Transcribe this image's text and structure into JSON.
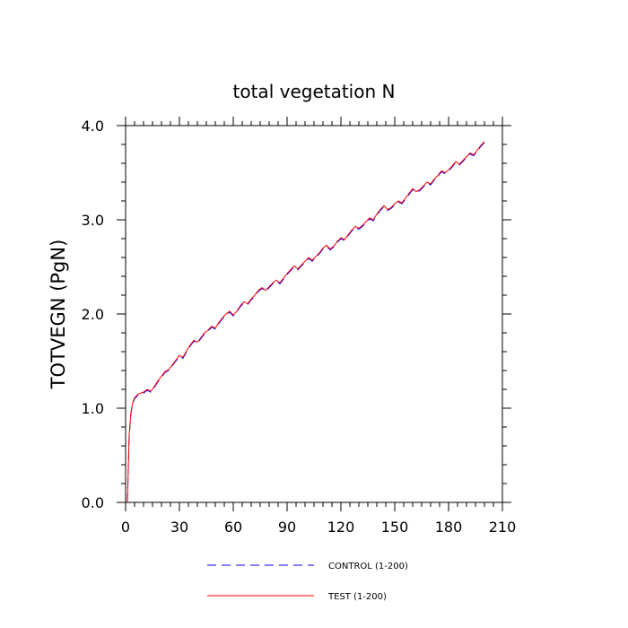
{
  "chart_data": {
    "type": "line",
    "title": "total vegetation N",
    "xlabel": "",
    "ylabel": "TOTVEGN  (PgN)",
    "xlim": [
      0,
      210
    ],
    "ylim": [
      0,
      4
    ],
    "x_ticks": [
      0,
      30,
      60,
      90,
      120,
      150,
      180,
      210
    ],
    "x_tick_labels": [
      "0",
      "30",
      "60",
      "90",
      "120",
      "150",
      "180",
      "210"
    ],
    "y_ticks": [
      0,
      1,
      2,
      3,
      4
    ],
    "y_tick_labels": [
      "0.0",
      "1.0",
      "2.0",
      "3.0",
      "4.0"
    ],
    "grid": false,
    "legend_position": "bottom",
    "series": [
      {
        "name": "CONTROL (1-200)",
        "color": "#0000ff",
        "dash": "dashed",
        "x": [
          1,
          2,
          3,
          4,
          5,
          7,
          10,
          12,
          14,
          16,
          18,
          20,
          22,
          24,
          26,
          28,
          30,
          32,
          34,
          36,
          38,
          40,
          42,
          44,
          46,
          48,
          50,
          52,
          54,
          56,
          58,
          60,
          62,
          64,
          66,
          68,
          70,
          72,
          74,
          76,
          78,
          80,
          82,
          84,
          86,
          88,
          90,
          92,
          94,
          96,
          98,
          100,
          102,
          104,
          106,
          108,
          110,
          112,
          114,
          116,
          118,
          120,
          122,
          124,
          126,
          128,
          130,
          132,
          134,
          136,
          138,
          140,
          142,
          144,
          146,
          148,
          150,
          152,
          154,
          156,
          158,
          160,
          162,
          164,
          166,
          168,
          170,
          172,
          174,
          176,
          178,
          180,
          182,
          184,
          186,
          188,
          190,
          192,
          194,
          196,
          198,
          200
        ],
        "values": [
          0.0,
          0.7,
          0.95,
          1.05,
          1.1,
          1.14,
          1.16,
          1.19,
          1.17,
          1.22,
          1.28,
          1.33,
          1.38,
          1.4,
          1.45,
          1.5,
          1.55,
          1.53,
          1.6,
          1.66,
          1.71,
          1.69,
          1.74,
          1.79,
          1.82,
          1.86,
          1.84,
          1.9,
          1.95,
          1.99,
          2.02,
          1.98,
          2.02,
          2.08,
          2.12,
          2.1,
          2.15,
          2.19,
          2.24,
          2.27,
          2.24,
          2.28,
          2.32,
          2.35,
          2.32,
          2.37,
          2.42,
          2.46,
          2.5,
          2.47,
          2.51,
          2.55,
          2.59,
          2.56,
          2.6,
          2.64,
          2.69,
          2.72,
          2.68,
          2.71,
          2.76,
          2.8,
          2.78,
          2.83,
          2.88,
          2.92,
          2.9,
          2.93,
          2.97,
          3.01,
          2.99,
          3.05,
          3.1,
          3.14,
          3.1,
          3.12,
          3.16,
          3.19,
          3.17,
          3.22,
          3.27,
          3.32,
          3.29,
          3.31,
          3.35,
          3.39,
          3.37,
          3.42,
          3.46,
          3.51,
          3.49,
          3.52,
          3.56,
          3.61,
          3.58,
          3.62,
          3.66,
          3.7,
          3.68,
          3.73,
          3.78,
          3.82
        ]
      },
      {
        "name": "TEST (1-200)",
        "color": "#ff0000",
        "dash": "solid",
        "x": [
          1,
          2,
          3,
          4,
          5,
          7,
          10,
          12,
          14,
          16,
          18,
          20,
          22,
          24,
          26,
          28,
          30,
          32,
          34,
          36,
          38,
          40,
          42,
          44,
          46,
          48,
          50,
          52,
          54,
          56,
          58,
          60,
          62,
          64,
          66,
          68,
          70,
          72,
          74,
          76,
          78,
          80,
          82,
          84,
          86,
          88,
          90,
          92,
          94,
          96,
          98,
          100,
          102,
          104,
          106,
          108,
          110,
          112,
          114,
          116,
          118,
          120,
          122,
          124,
          126,
          128,
          130,
          132,
          134,
          136,
          138,
          140,
          142,
          144,
          146,
          148,
          150,
          152,
          154,
          156,
          158,
          160,
          162,
          164,
          166,
          168,
          170,
          172,
          174,
          176,
          178,
          180,
          182,
          184,
          186,
          188,
          190,
          192,
          194,
          196,
          198,
          200
        ],
        "values": [
          0.0,
          0.72,
          0.96,
          1.06,
          1.11,
          1.15,
          1.17,
          1.2,
          1.18,
          1.23,
          1.29,
          1.34,
          1.39,
          1.41,
          1.46,
          1.51,
          1.56,
          1.54,
          1.61,
          1.67,
          1.72,
          1.7,
          1.75,
          1.8,
          1.83,
          1.87,
          1.85,
          1.91,
          1.96,
          2.0,
          2.03,
          1.99,
          2.03,
          2.09,
          2.13,
          2.11,
          2.16,
          2.2,
          2.25,
          2.28,
          2.25,
          2.29,
          2.33,
          2.36,
          2.33,
          2.38,
          2.43,
          2.47,
          2.51,
          2.48,
          2.52,
          2.56,
          2.6,
          2.57,
          2.61,
          2.65,
          2.7,
          2.73,
          2.69,
          2.72,
          2.77,
          2.81,
          2.79,
          2.84,
          2.89,
          2.93,
          2.91,
          2.94,
          2.98,
          3.02,
          3.0,
          3.06,
          3.11,
          3.15,
          3.11,
          3.13,
          3.17,
          3.2,
          3.18,
          3.23,
          3.28,
          3.33,
          3.3,
          3.32,
          3.36,
          3.4,
          3.38,
          3.43,
          3.47,
          3.52,
          3.5,
          3.53,
          3.57,
          3.62,
          3.59,
          3.63,
          3.67,
          3.71,
          3.69,
          3.74,
          3.79,
          3.83
        ]
      }
    ]
  }
}
